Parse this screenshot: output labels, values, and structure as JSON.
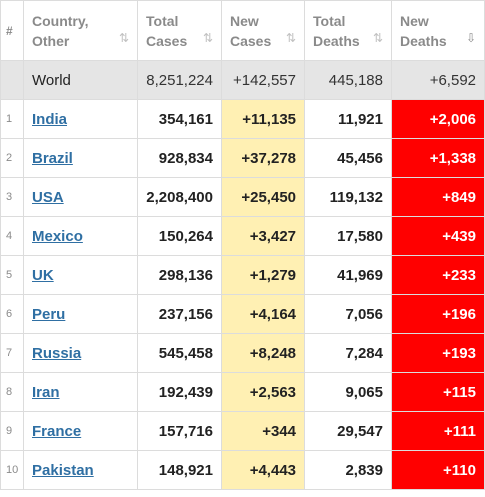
{
  "headers": {
    "rank": "#",
    "country": [
      "Country,",
      "Other"
    ],
    "total_cases": [
      "Total",
      "Cases"
    ],
    "new_cases": [
      "New",
      "Cases"
    ],
    "total_deaths": [
      "Total",
      "Deaths"
    ],
    "new_deaths": [
      "New",
      "Deaths"
    ],
    "sort_icon": "sort-arrows-icon",
    "active_sort_icon": "sort-descending-icon"
  },
  "world": {
    "label": "World",
    "total_cases": "8,251,224",
    "new_cases": "+142,557",
    "total_deaths": "445,188",
    "new_deaths": "+6,592"
  },
  "rows": [
    {
      "rank": "1",
      "country": "India",
      "total_cases": "354,161",
      "new_cases": "+11,135",
      "total_deaths": "11,921",
      "new_deaths": "+2,006"
    },
    {
      "rank": "2",
      "country": "Brazil",
      "total_cases": "928,834",
      "new_cases": "+37,278",
      "total_deaths": "45,456",
      "new_deaths": "+1,338"
    },
    {
      "rank": "3",
      "country": "USA",
      "total_cases": "2,208,400",
      "new_cases": "+25,450",
      "total_deaths": "119,132",
      "new_deaths": "+849"
    },
    {
      "rank": "4",
      "country": "Mexico",
      "total_cases": "150,264",
      "new_cases": "+3,427",
      "total_deaths": "17,580",
      "new_deaths": "+439"
    },
    {
      "rank": "5",
      "country": "UK",
      "total_cases": "298,136",
      "new_cases": "+1,279",
      "total_deaths": "41,969",
      "new_deaths": "+233"
    },
    {
      "rank": "6",
      "country": "Peru",
      "total_cases": "237,156",
      "new_cases": "+4,164",
      "total_deaths": "7,056",
      "new_deaths": "+196"
    },
    {
      "rank": "7",
      "country": "Russia",
      "total_cases": "545,458",
      "new_cases": "+8,248",
      "total_deaths": "7,284",
      "new_deaths": "+193"
    },
    {
      "rank": "8",
      "country": "Iran",
      "total_cases": "192,439",
      "new_cases": "+2,563",
      "total_deaths": "9,065",
      "new_deaths": "+115"
    },
    {
      "rank": "9",
      "country": "France",
      "total_cases": "157,716",
      "new_cases": "+344",
      "total_deaths": "29,547",
      "new_deaths": "+111"
    },
    {
      "rank": "10",
      "country": "Pakistan",
      "total_cases": "148,921",
      "new_cases": "+4,443",
      "total_deaths": "2,839",
      "new_deaths": "+110"
    }
  ],
  "colors": {
    "link": "#2f6fa3",
    "new_cases_bg": "#fff0b3",
    "new_deaths_bg": "#ff0000",
    "world_bg": "#e5e5e5"
  }
}
